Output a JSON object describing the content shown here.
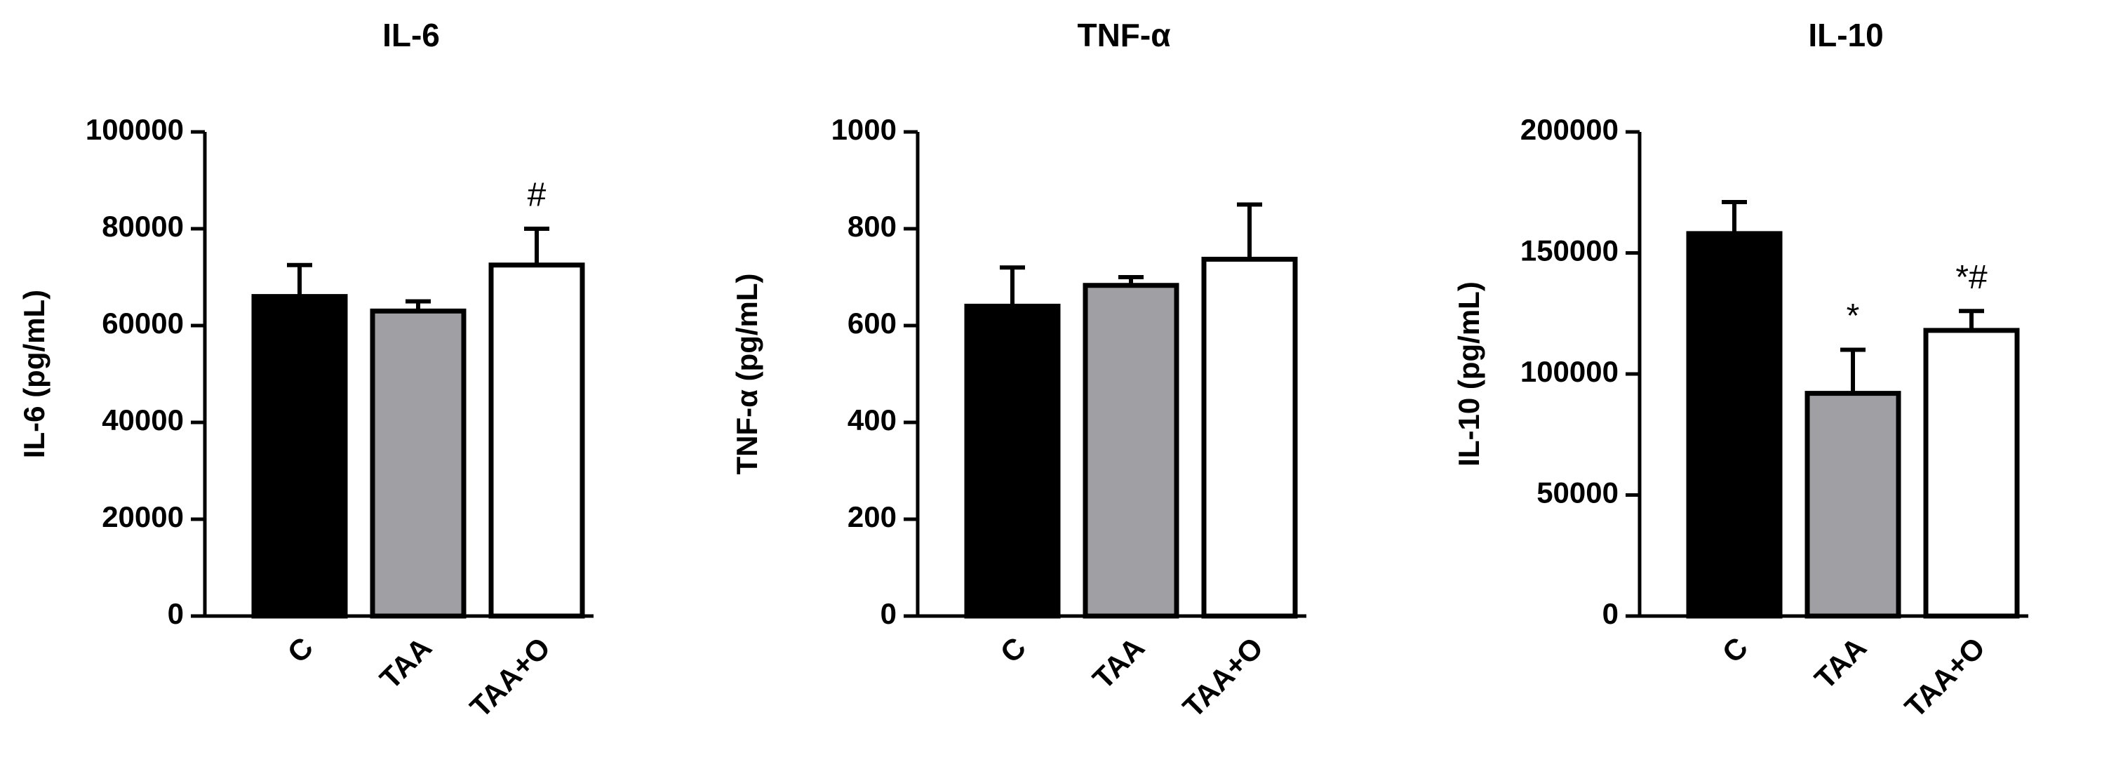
{
  "chart_data": [
    {
      "type": "bar",
      "title": "IL-6",
      "y_label": "IL-6 (pg/mL)",
      "categories": [
        "C",
        "TAA",
        "TAA+O"
      ],
      "values": [
        66000,
        63000,
        72500
      ],
      "errors": [
        6500,
        2000,
        7500
      ],
      "colors": [
        "#000000",
        "#a0a0a4",
        "#ffffff"
      ],
      "annotations": [
        null,
        null,
        "#"
      ],
      "ylim": [
        0,
        100000
      ],
      "yticks": [
        0,
        20000,
        40000,
        60000,
        80000,
        100000
      ]
    },
    {
      "type": "bar",
      "title": "TNF-α",
      "y_label": "TNF-α (pg/mL)",
      "categories": [
        "C",
        "TAA",
        "TAA+O"
      ],
      "values": [
        640,
        683,
        737
      ],
      "errors": [
        80,
        17,
        113
      ],
      "colors": [
        "#000000",
        "#a0a0a4",
        "#ffffff"
      ],
      "annotations": [
        null,
        null,
        null
      ],
      "ylim": [
        0,
        1000
      ],
      "yticks": [
        0,
        200,
        400,
        600,
        800,
        1000
      ]
    },
    {
      "type": "bar",
      "title": "IL-10",
      "y_label": "IL-10 (pg/mL)",
      "categories": [
        "C",
        "TAA",
        "TAA+O"
      ],
      "values": [
        158000,
        92000,
        118000
      ],
      "errors": [
        13000,
        18000,
        8000
      ],
      "colors": [
        "#000000",
        "#a0a0a4",
        "#ffffff"
      ],
      "annotations": [
        null,
        "*",
        "*#"
      ],
      "ylim": [
        0,
        200000
      ],
      "yticks": [
        0,
        50000,
        100000,
        150000,
        200000
      ]
    }
  ]
}
